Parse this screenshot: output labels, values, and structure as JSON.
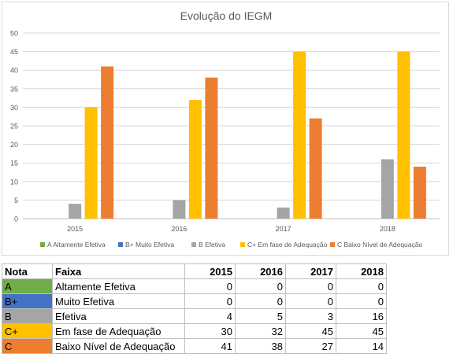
{
  "chart_data": {
    "type": "bar",
    "title": "Evolução do IEGM",
    "categories": [
      "2015",
      "2016",
      "2017",
      "2018"
    ],
    "ylim": [
      0,
      50
    ],
    "yticks": [
      0,
      5,
      10,
      15,
      20,
      25,
      30,
      35,
      40,
      45,
      50
    ],
    "grid": true,
    "legend_position": "bottom",
    "series": [
      {
        "name": "A Altamente Efetiva",
        "color": "#70ad47",
        "values": [
          0,
          0,
          0,
          0
        ]
      },
      {
        "name": "B+ Muito Efetiva",
        "color": "#4472c4",
        "values": [
          0,
          0,
          0,
          0
        ]
      },
      {
        "name": "B Efetiva",
        "color": "#a5a5a5",
        "values": [
          4,
          5,
          3,
          16
        ]
      },
      {
        "name": "C+ Em fase de Adequação",
        "color": "#ffc000",
        "values": [
          30,
          32,
          45,
          45
        ]
      },
      {
        "name": "C Baixo Nível de Adequação",
        "color": "#ed7d31",
        "values": [
          41,
          38,
          27,
          14
        ]
      }
    ]
  },
  "table": {
    "headers": [
      "Nota",
      "Faixa",
      "2015",
      "2016",
      "2017",
      "2018"
    ],
    "rows": [
      {
        "nota": "A",
        "color": "#70ad47",
        "faixa": "Altamente Efetiva",
        "values": [
          "0",
          "0",
          "0",
          "0"
        ]
      },
      {
        "nota": "B+",
        "color": "#4472c4",
        "faixa": "Muito Efetiva",
        "values": [
          "0",
          "0",
          "0",
          "0"
        ]
      },
      {
        "nota": "B",
        "color": "#a5a5a5",
        "faixa": "Efetiva",
        "values": [
          "4",
          "5",
          "3",
          "16"
        ]
      },
      {
        "nota": "C+",
        "color": "#ffc000",
        "faixa": "Em fase de Adequação",
        "values": [
          "30",
          "32",
          "45",
          "45"
        ]
      },
      {
        "nota": "C",
        "color": "#ed7d31",
        "faixa": "Baixo Nível de Adequação",
        "values": [
          "41",
          "38",
          "27",
          "14"
        ]
      }
    ]
  }
}
